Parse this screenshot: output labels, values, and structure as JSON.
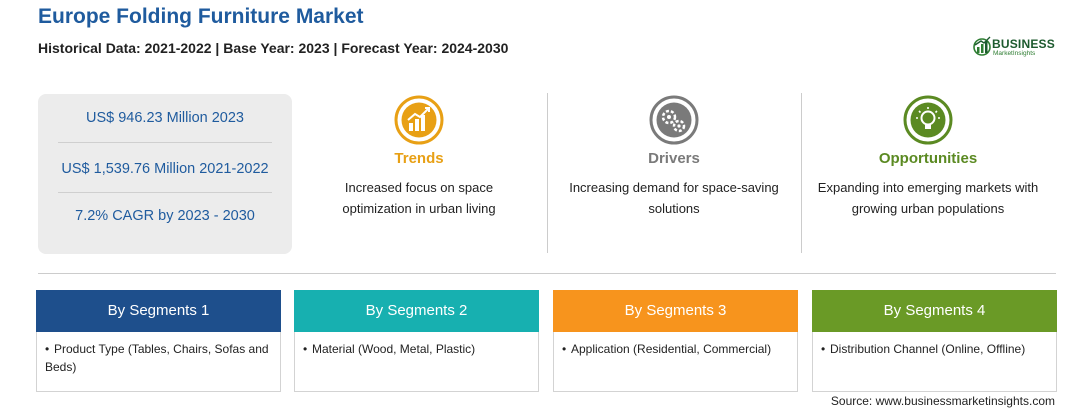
{
  "header": {
    "title": "Europe Folding Furniture Market",
    "subtitle": "Historical Data: 2021-2022 | Base Year: 2023 | Forecast Year: 2024-2030"
  },
  "logo": {
    "name": "BUSINESS",
    "tagline": "MarketInsights"
  },
  "stats": [
    "US$ 946.23 Million 2023",
    "US$ 1,539.76 Million 2021-2022",
    "7.2% CAGR by 2023 - 2030"
  ],
  "columns": [
    {
      "title": "Trends",
      "text": "Increased focus on space optimization in urban living",
      "color": "#e8a015",
      "icon": "chart-growth-icon"
    },
    {
      "title": "Drivers",
      "text": "Increasing demand for space-saving solutions",
      "color": "#7a7a7a",
      "icon": "gears-icon"
    },
    {
      "title": "Opportunities",
      "text": "Expanding into emerging markets with growing urban populations",
      "color": "#5b8a22",
      "icon": "lightbulb-icon"
    }
  ],
  "segments": [
    {
      "label": "By Segments 1",
      "color": "#1e4f8c",
      "item": "Product Type (Tables, Chairs, Sofas and Beds)"
    },
    {
      "label": "By Segments 2",
      "color": "#17b0b0",
      "item": "Material (Wood, Metal, Plastic)"
    },
    {
      "label": "By Segments 3",
      "color": "#f7941d",
      "item": "Application (Residential, Commercial)"
    },
    {
      "label": "By Segments 4",
      "color": "#6a9a26",
      "item": "Distribution Channel (Online, Offline)"
    }
  ],
  "source": "Source: www.businessmarketinsights.com"
}
